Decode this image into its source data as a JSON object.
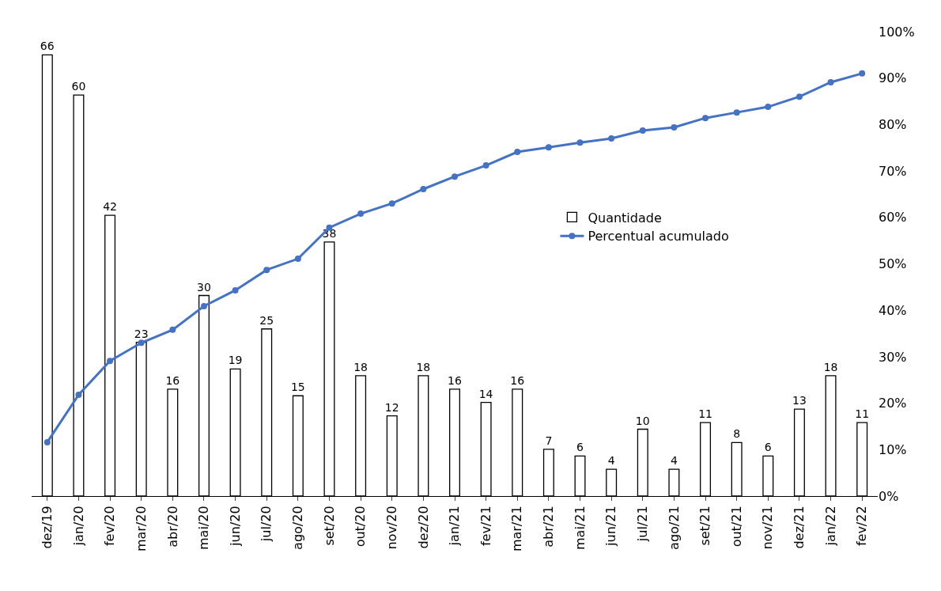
{
  "chart_data": {
    "type": "bar",
    "categories": [
      "dez/19",
      "jan/20",
      "fev/20",
      "mar/20",
      "abr/20",
      "mai/20",
      "jun/20",
      "jul/20",
      "ago/20",
      "set/20",
      "out/20",
      "nov/20",
      "dez/20",
      "jan/21",
      "fev/21",
      "mar/21",
      "abr/21",
      "mai/21",
      "jun/21",
      "jul/21",
      "ago/21",
      "set/21",
      "out/21",
      "nov/21",
      "dez/21",
      "jan/22",
      "fev/22"
    ],
    "series": [
      {
        "name": "Quantidade",
        "color": "#ffffff",
        "values": [
          66,
          60,
          42,
          23,
          16,
          30,
          19,
          25,
          15,
          38,
          18,
          12,
          18,
          16,
          14,
          16,
          7,
          6,
          4,
          10,
          4,
          11,
          8,
          6,
          13,
          18,
          11
        ],
        "value_labels": [
          "66",
          "60",
          "42",
          "23",
          "16",
          "30",
          "19",
          "25",
          "15",
          "38",
          "18",
          "12",
          "18",
          "16",
          "14",
          "16",
          "7",
          "6",
          "4",
          "10",
          "4",
          "11",
          "8",
          "6",
          "13",
          "18",
          "11"
        ]
      },
      {
        "name": "Percentual acumulado",
        "type": "line",
        "axis": "y2",
        "color": "#4472c4",
        "values": [
          11.6,
          21.8,
          29.1,
          33.0,
          35.8,
          40.9,
          44.3,
          48.7,
          51.1,
          57.8,
          60.8,
          63.0,
          66.1,
          68.8,
          71.2,
          74.1,
          75.1,
          76.1,
          77.0,
          78.7,
          79.4,
          81.4,
          82.6,
          83.8,
          86.0,
          89.1,
          91.0
        ]
      }
    ],
    "y2lim": [
      0,
      100
    ],
    "y2ticks": [
      {
        "value": 0,
        "label": "0%"
      },
      {
        "value": 10,
        "label": "10%"
      },
      {
        "value": 20,
        "label": "20%"
      },
      {
        "value": 30,
        "label": "30%"
      },
      {
        "value": 40,
        "label": "40%"
      },
      {
        "value": 50,
        "label": "50%"
      },
      {
        "value": 60,
        "label": "60%"
      },
      {
        "value": 70,
        "label": "70%"
      },
      {
        "value": 80,
        "label": "80%"
      },
      {
        "value": 90,
        "label": "90%"
      },
      {
        "value": 100,
        "label": "100%"
      }
    ],
    "tick_labels": [
      "x",
      "y2"
    ],
    "marker": "circle",
    "line_style": "solid",
    "legend": "right"
  }
}
